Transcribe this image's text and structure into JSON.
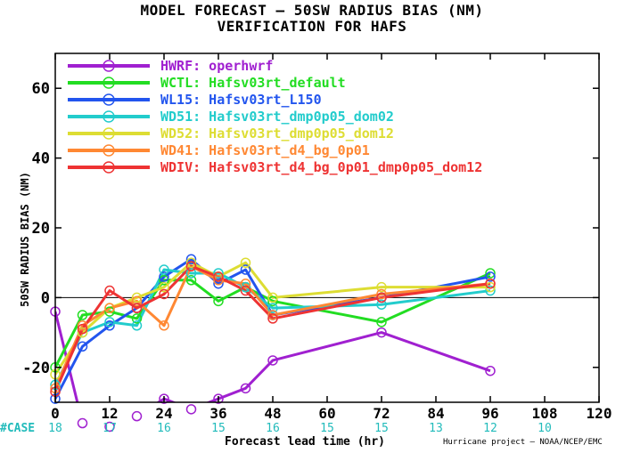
{
  "chart_data": {
    "type": "line",
    "title": "MODEL FORECAST – 50SW RADIUS BIAS (NM)",
    "subtitle": "VERIFICATION FOR HAFS",
    "xlabel": "Forecast lead time (hr)",
    "ylabel": "50SW RADIUS BIAS (NM)",
    "xlim": [
      0,
      120
    ],
    "ylim": [
      -30,
      70
    ],
    "xticks": [
      0,
      12,
      24,
      36,
      48,
      60,
      72,
      84,
      96,
      108,
      120
    ],
    "yticks": [
      -20,
      0,
      20,
      40,
      60
    ],
    "zero_line": true,
    "grid": false,
    "legend_position": "top-left",
    "credit": "Hurricane project – NOAA/NCEP/EMC",
    "case_label": "#CASE",
    "case_hours": [
      0,
      12,
      24,
      36,
      48,
      60,
      72,
      84,
      96,
      108,
      120
    ],
    "case_counts": [
      "18",
      "17",
      "16",
      "15",
      "16",
      "15",
      "15",
      "13",
      "12",
      "10",
      ""
    ],
    "x": [
      0,
      6,
      12,
      18,
      24,
      30,
      36,
      42,
      48,
      72,
      96
    ],
    "series": [
      {
        "name": "HWRF: operhwrf",
        "color": "#a020d0",
        "values": [
          -4,
          -36,
          -37,
          -34,
          -29,
          -32,
          -29,
          -26,
          -18,
          -10,
          -21
        ]
      },
      {
        "name": "WCTL: Hafsv03rt_default",
        "color": "#22dd22",
        "values": [
          -20,
          -5,
          -4,
          -6,
          5,
          5,
          -1,
          3,
          -1,
          -7,
          7
        ]
      },
      {
        "name": "WL15: Hafsv03rt_L150",
        "color": "#2255ee",
        "values": [
          -29,
          -14,
          -8,
          -3,
          6,
          11,
          4,
          8,
          -5,
          0,
          6
        ]
      },
      {
        "name": "WD51: Hafsv03rt_dmp0p05_dom02",
        "color": "#22cccc",
        "values": [
          -25,
          -10,
          -7,
          -8,
          8,
          7,
          7,
          3,
          -3,
          -2,
          2
        ]
      },
      {
        "name": "WD52: Hafsv03rt_dmp0p05_dom12",
        "color": "#dddd33",
        "values": [
          -22,
          -10,
          -3,
          0,
          3,
          10,
          6,
          10,
          0,
          3,
          3
        ]
      },
      {
        "name": "WD41: Hafsv03rt_d4_bg_0p01",
        "color": "#ff8833",
        "values": [
          -26,
          -8,
          -3,
          -1,
          -8,
          9,
          5,
          4,
          -5,
          1,
          4
        ]
      },
      {
        "name": "WDIV: Hafsv03rt_d4_bg_0p01_dmp0p05_dom12",
        "color": "#ee3333",
        "values": [
          -27,
          -9,
          2,
          -3,
          1,
          9,
          6,
          2,
          -6,
          0,
          4
        ]
      }
    ]
  }
}
